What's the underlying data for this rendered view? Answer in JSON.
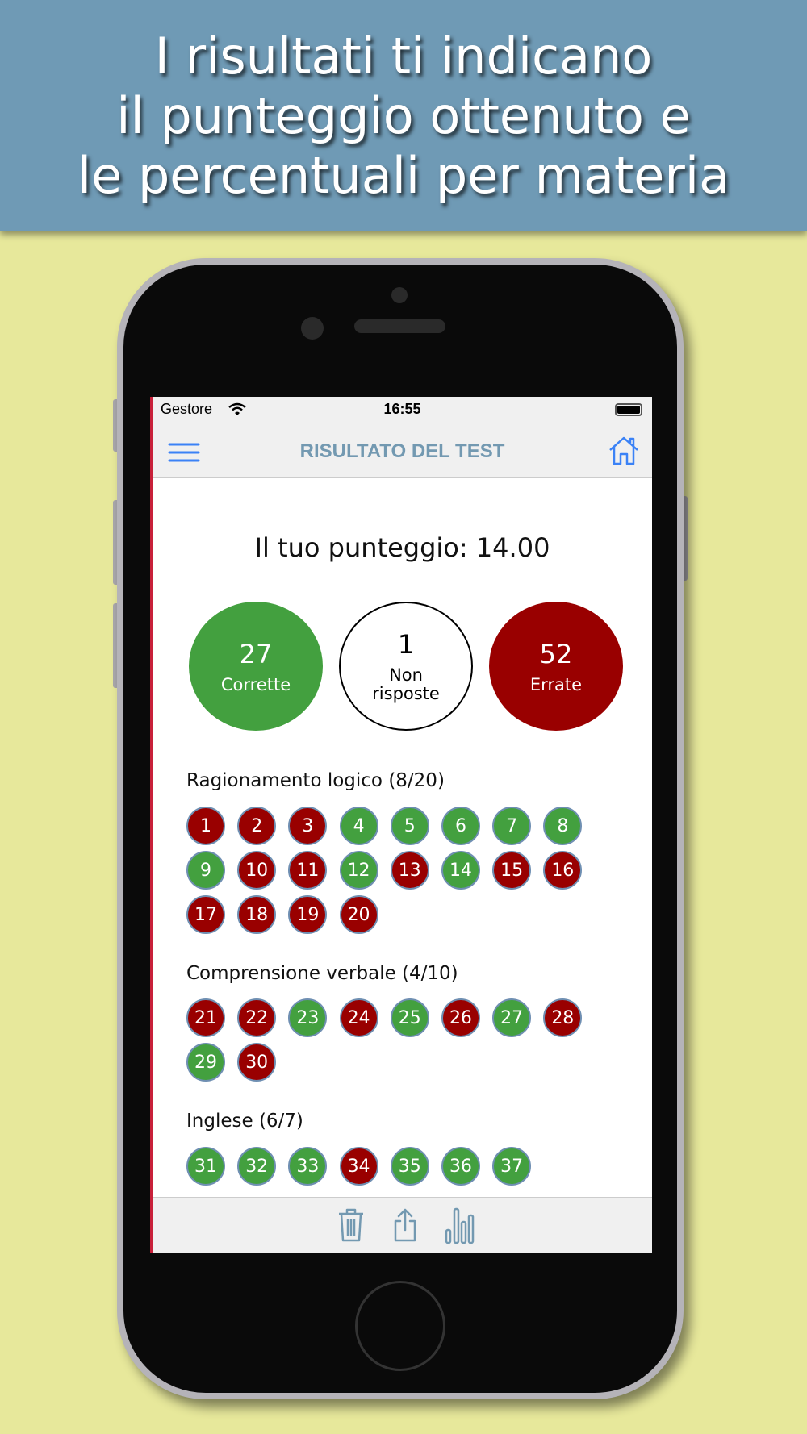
{
  "banner": {
    "lines": [
      "I risultati ti indicano",
      "il punteggio ottenuto e",
      "le percentuali per materia"
    ]
  },
  "status": {
    "carrier": "Gestore",
    "time": "16:55"
  },
  "nav": {
    "title": "RISULTATO DEL TEST",
    "menu_icon": "hamburger-icon",
    "home_icon": "home-icon"
  },
  "score": {
    "text": "Il tuo punteggio: 14.00"
  },
  "summary": [
    {
      "count": "27",
      "label": "Corrette",
      "color": "#43a03f"
    },
    {
      "count": "1",
      "label": "Non risposte",
      "color": "#ffffff"
    },
    {
      "count": "52",
      "label": "Errate",
      "color": "#990000"
    }
  ],
  "sections": [
    {
      "title": "Ragionamento logico (8/20)",
      "answers": [
        [
          "1",
          "r"
        ],
        [
          "2",
          "r"
        ],
        [
          "3",
          "r"
        ],
        [
          "4",
          "g"
        ],
        [
          "5",
          "g"
        ],
        [
          "6",
          "g"
        ],
        [
          "7",
          "g"
        ],
        [
          "8",
          "g"
        ],
        [
          "9",
          "g"
        ],
        [
          "10",
          "r"
        ],
        [
          "11",
          "r"
        ],
        [
          "12",
          "g"
        ],
        [
          "13",
          "r"
        ],
        [
          "14",
          "g"
        ],
        [
          "15",
          "r"
        ],
        [
          "16",
          "r"
        ],
        [
          "17",
          "r"
        ],
        [
          "18",
          "r"
        ],
        [
          "19",
          "r"
        ],
        [
          "20",
          "r"
        ]
      ]
    },
    {
      "title": "Comprensione verbale (4/10)",
      "answers": [
        [
          "21",
          "r"
        ],
        [
          "22",
          "r"
        ],
        [
          "23",
          "g"
        ],
        [
          "24",
          "r"
        ],
        [
          "25",
          "g"
        ],
        [
          "26",
          "r"
        ],
        [
          "27",
          "g"
        ],
        [
          "28",
          "r"
        ],
        [
          "29",
          "g"
        ],
        [
          "30",
          "r"
        ]
      ]
    },
    {
      "title": "Inglese (6/7)",
      "answers": [
        [
          "31",
          "g"
        ],
        [
          "32",
          "g"
        ],
        [
          "33",
          "g"
        ],
        [
          "34",
          "r"
        ],
        [
          "35",
          "g"
        ],
        [
          "36",
          "g"
        ],
        [
          "37",
          "g"
        ]
      ]
    }
  ],
  "toolbar": {
    "icons": [
      "trash-icon",
      "share-icon",
      "chart-icon"
    ]
  },
  "colors": {
    "correct": "#43a03f",
    "wrong": "#990000",
    "accent": "#7399b1",
    "banner": "#6f9ab5"
  }
}
